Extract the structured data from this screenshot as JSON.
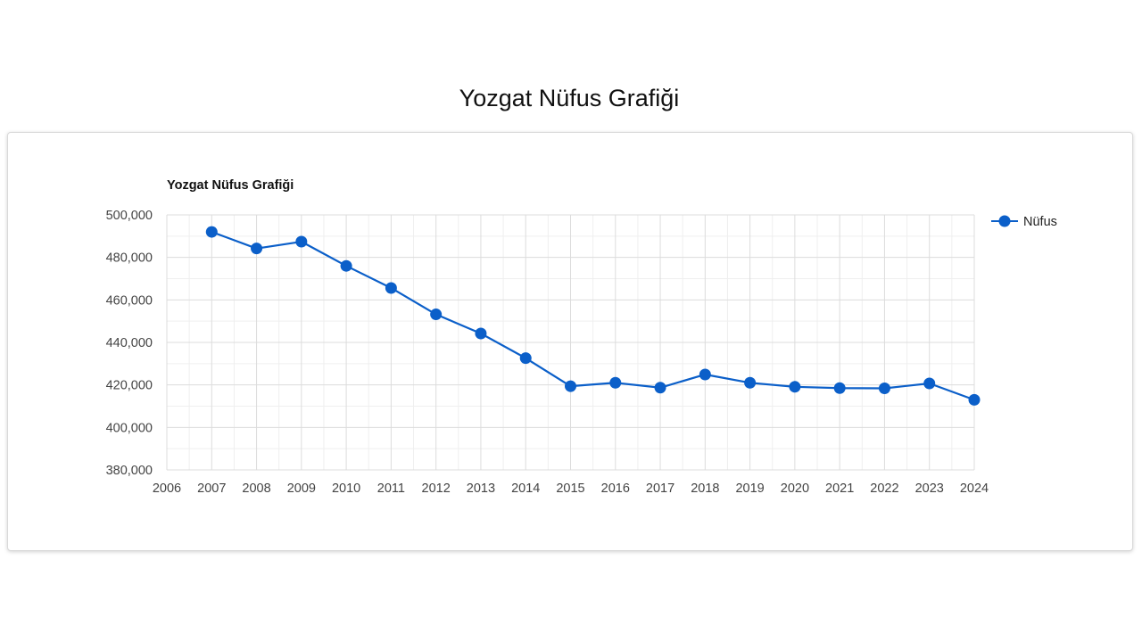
{
  "page": {
    "title": "Yozgat Nüfus Grafiği"
  },
  "chart_data": {
    "type": "line",
    "title": "Yozgat Nüfus Grafiği",
    "xlabel": "",
    "ylabel": "",
    "xlim": [
      2006,
      2024
    ],
    "ylim": [
      380000,
      500000
    ],
    "x_ticks": [
      "2006",
      "2007",
      "2008",
      "2009",
      "2010",
      "2011",
      "2012",
      "2013",
      "2014",
      "2015",
      "2016",
      "2017",
      "2018",
      "2019",
      "2020",
      "2021",
      "2022",
      "2023",
      "2024"
    ],
    "y_ticks": [
      "380,000",
      "400,000",
      "420,000",
      "440,000",
      "460,000",
      "480,000",
      "500,000"
    ],
    "grid": true,
    "legend_position": "right",
    "color": "#0b5fc9",
    "x": [
      2007,
      2008,
      2009,
      2010,
      2011,
      2012,
      2013,
      2014,
      2015,
      2016,
      2017,
      2018,
      2019,
      2020,
      2021,
      2022,
      2023,
      2024
    ],
    "series": [
      {
        "name": "Nüfus",
        "values": [
          492000,
          484200,
          487400,
          476000,
          465600,
          453200,
          444200,
          432600,
          419400,
          421000,
          418700,
          424900,
          421000,
          419100,
          418500,
          418400,
          420700,
          413000
        ]
      }
    ]
  }
}
